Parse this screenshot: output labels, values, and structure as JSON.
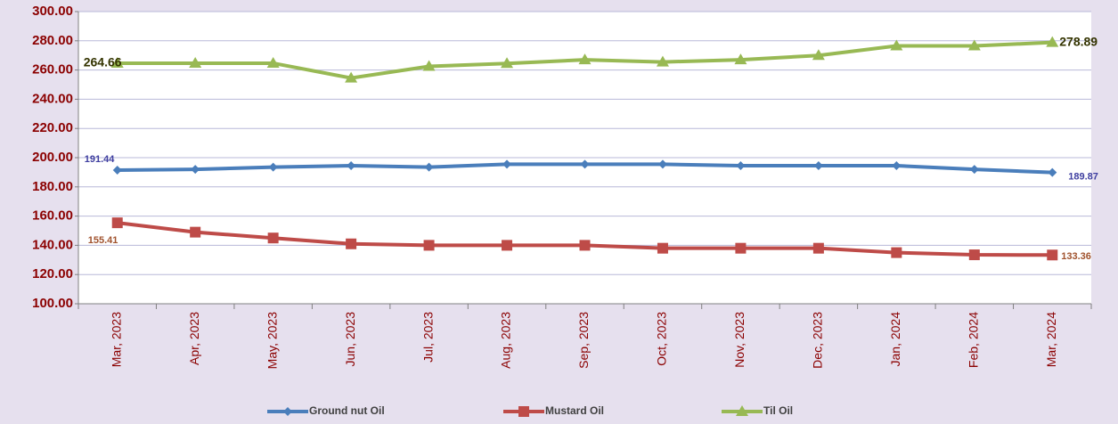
{
  "chart_data": {
    "type": "line",
    "categories": [
      "Mar, 2023",
      "Apr, 2023",
      "May, 2023",
      "Jun, 2023",
      "Jul, 2023",
      "Aug, 2023",
      "Sep, 2023",
      "Oct, 2023",
      "Nov, 2023",
      "Dec, 2023",
      "Jan, 2024",
      "Feb, 2024",
      "Mar, 2024"
    ],
    "series": [
      {
        "name": "Ground nut Oil",
        "color": "#4a7ebb",
        "marker": "diamond",
        "values": [
          191.44,
          192,
          193.5,
          194.5,
          193.5,
          195.5,
          195.5,
          195.5,
          194.5,
          194.5,
          194.5,
          192,
          189.87
        ]
      },
      {
        "name": "Mustard Oil",
        "color": "#be4b48",
        "marker": "square",
        "values": [
          155.41,
          149,
          145,
          141,
          140,
          140,
          140,
          138,
          138,
          138,
          135,
          133.5,
          133.36
        ]
      },
      {
        "name": "Til Oil",
        "color": "#98b954",
        "marker": "triangle",
        "values": [
          264.66,
          264.66,
          264.66,
          254.5,
          262.5,
          264.5,
          267,
          265.5,
          267,
          270,
          276.5,
          276.5,
          278.89
        ]
      }
    ],
    "ylim": [
      100,
      300
    ],
    "yticks": [
      {
        "value": 100,
        "label": "100.00"
      },
      {
        "value": 120,
        "label": "120.00"
      },
      {
        "value": 140,
        "label": "140.00"
      },
      {
        "value": 160,
        "label": "160.00"
      },
      {
        "value": 180,
        "label": "180.00"
      },
      {
        "value": 200,
        "label": "200.00"
      },
      {
        "value": 220,
        "label": "220.00"
      },
      {
        "value": 240,
        "label": "240.00"
      },
      {
        "value": 260,
        "label": "260.00"
      },
      {
        "value": 280,
        "label": "280.00"
      },
      {
        "value": 300,
        "label": "300.00"
      }
    ],
    "grid": true,
    "legend": "bottom"
  }
}
